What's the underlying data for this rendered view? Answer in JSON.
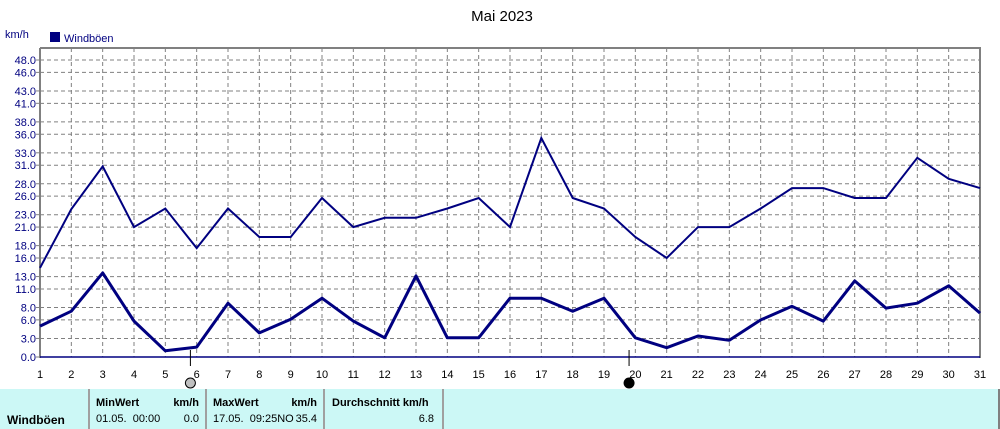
{
  "title": "Mai 2023",
  "y_unit": "km/h",
  "legend": {
    "label": "Windböen",
    "color": "#000080"
  },
  "colors": {
    "series": "#000080",
    "grid": "#808080",
    "frame": "#808080",
    "table_bg": "#ccf8f6"
  },
  "markers": [
    {
      "day": 5.8,
      "type": "full-moon",
      "color": "#c0c0c0"
    },
    {
      "day": 19.8,
      "type": "new-moon",
      "color": "#000000"
    }
  ],
  "stats": {
    "row_label": "Windböen",
    "min": {
      "header": "MinWert",
      "unit": "km/h",
      "datetime": "01.05.  00:00",
      "value": "0.0"
    },
    "max": {
      "header": "MaxWert",
      "unit": "km/h",
      "datetime": "17.05.  09:25NO",
      "value": "35.4"
    },
    "avg": {
      "header": "Durchschnitt km/h",
      "value": "6.8"
    }
  },
  "chart_data": {
    "type": "line",
    "title": "Mai 2023",
    "xlabel": "",
    "ylabel": "km/h",
    "ylim": [
      0,
      48
    ],
    "yticks": [
      0.0,
      3.0,
      6.0,
      8.0,
      11.0,
      13.0,
      16.0,
      18.0,
      21.0,
      23.0,
      26.0,
      28.0,
      31.0,
      33.0,
      36.0,
      38.0,
      41.0,
      43.0,
      46.0,
      48.0
    ],
    "ytick_labels": [
      "0.0",
      "3.0",
      "6.0",
      "8.0",
      "11.0",
      "13.0",
      "16.0",
      "18.0",
      "21.0",
      "23.0",
      "26.0",
      "28.0",
      "31.0",
      "33.0",
      "36.0",
      "38.0",
      "41.0",
      "43.0",
      "46.0",
      "48.0"
    ],
    "x": [
      1,
      2,
      3,
      4,
      5,
      6,
      7,
      8,
      9,
      10,
      11,
      12,
      13,
      14,
      15,
      16,
      17,
      18,
      19,
      20,
      21,
      22,
      23,
      24,
      25,
      26,
      27,
      28,
      29,
      30,
      31
    ],
    "grid": true,
    "legend_position": "top-left",
    "series": [
      {
        "name": "Windböen (max)",
        "values": [
          14.4,
          23.9,
          30.8,
          21.0,
          24.0,
          17.6,
          24.0,
          19.4,
          19.4,
          25.7,
          21.0,
          22.5,
          22.5,
          24.0,
          25.7,
          21.0,
          35.4,
          25.7,
          24.0,
          19.4,
          16.0,
          21.0,
          21.0,
          24.0,
          27.3,
          27.3,
          25.7,
          25.7,
          32.2,
          28.8,
          27.3
        ]
      },
      {
        "name": "Windböen (mittel)",
        "values": [
          5.0,
          7.4,
          13.6,
          5.8,
          1.0,
          1.6,
          8.7,
          3.9,
          6.1,
          9.5,
          5.8,
          3.1,
          13.1,
          3.1,
          3.1,
          9.5,
          9.5,
          7.4,
          9.5,
          3.1,
          1.5,
          3.4,
          2.7,
          6.0,
          8.2,
          5.8,
          12.3,
          7.9,
          8.7,
          11.5,
          7.1
        ]
      }
    ]
  }
}
